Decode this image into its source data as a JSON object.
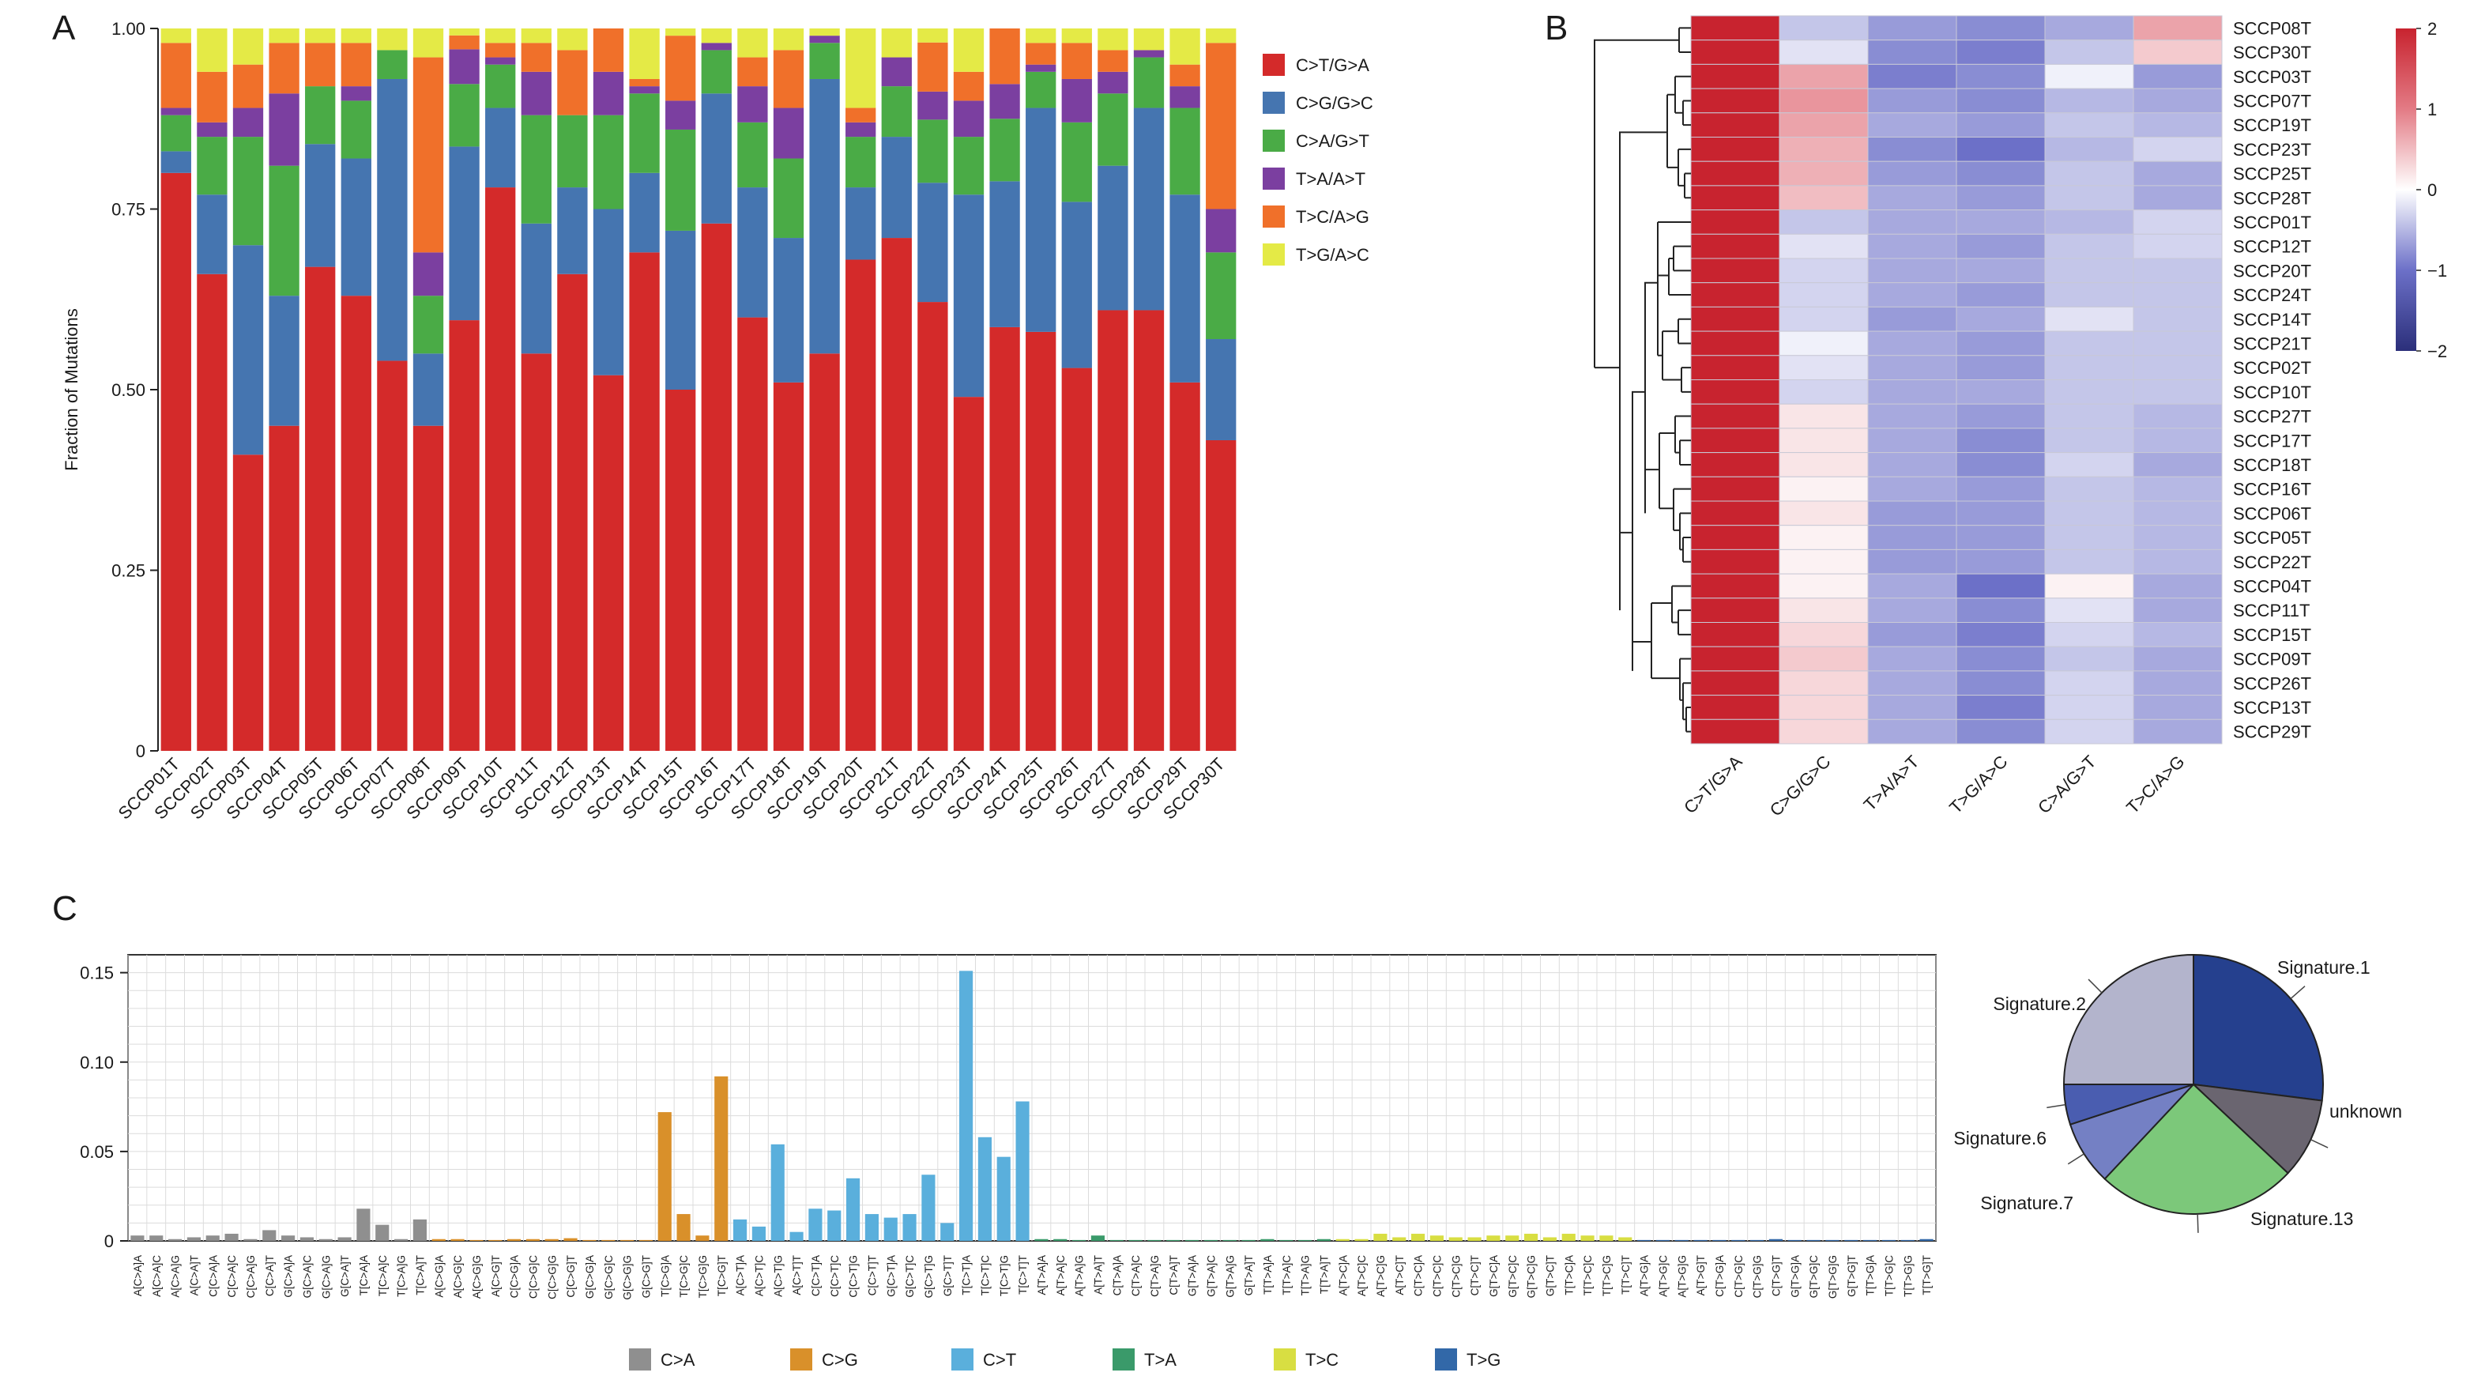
{
  "panel_letters": {
    "a": "A",
    "b": "B",
    "c": "C"
  },
  "chart_data": [
    {
      "panel": "A",
      "type": "bar",
      "stacked": true,
      "ylabel": "Fraction of Mutations",
      "ylim": [
        0,
        1
      ],
      "yticks": [
        "0",
        "0.25",
        "0.50",
        "0.75",
        "1.00"
      ],
      "ytick_values": [
        0,
        0.25,
        0.5,
        0.75,
        1.0
      ],
      "legend_position": "right",
      "categories": [
        "SCCP01T",
        "SCCP02T",
        "SCCP03T",
        "SCCP04T",
        "SCCP05T",
        "SCCP06T",
        "SCCP07T",
        "SCCP08T",
        "SCCP09T",
        "SCCP10T",
        "SCCP11T",
        "SCCP12T",
        "SCCP13T",
        "SCCP14T",
        "SCCP15T",
        "SCCP16T",
        "SCCP17T",
        "SCCP18T",
        "SCCP19T",
        "SCCP20T",
        "SCCP21T",
        "SCCP22T",
        "SCCP23T",
        "SCCP24T",
        "SCCP25T",
        "SCCP26T",
        "SCCP27T",
        "SCCP28T",
        "SCCP29T",
        "SCCP30T"
      ],
      "series": [
        {
          "name": "C>T/G>A",
          "color": "#d42a2a",
          "values": [
            0.8,
            0.66,
            0.41,
            0.45,
            0.67,
            0.63,
            0.54,
            0.45,
            0.62,
            0.78,
            0.55,
            0.66,
            0.52,
            0.69,
            0.5,
            0.73,
            0.6,
            0.51,
            0.55,
            0.68,
            0.71,
            0.64,
            0.49,
            0.61,
            0.58,
            0.53,
            0.61,
            0.61,
            0.51,
            0.43
          ]
        },
        {
          "name": "C>G/G>C",
          "color": "#4575b0",
          "values": [
            0.03,
            0.11,
            0.29,
            0.18,
            0.17,
            0.19,
            0.39,
            0.1,
            0.25,
            0.11,
            0.18,
            0.12,
            0.23,
            0.11,
            0.22,
            0.18,
            0.18,
            0.2,
            0.38,
            0.1,
            0.14,
            0.17,
            0.28,
            0.21,
            0.31,
            0.23,
            0.2,
            0.28,
            0.26,
            0.14
          ]
        },
        {
          "name": "C>A/G>T",
          "color": "#4aab46",
          "values": [
            0.05,
            0.08,
            0.15,
            0.18,
            0.08,
            0.08,
            0.04,
            0.08,
            0.09,
            0.06,
            0.15,
            0.1,
            0.13,
            0.11,
            0.14,
            0.06,
            0.09,
            0.11,
            0.05,
            0.07,
            0.07,
            0.09,
            0.08,
            0.09,
            0.05,
            0.11,
            0.1,
            0.07,
            0.12,
            0.12
          ]
        },
        {
          "name": "T>A/A>T",
          "color": "#7b3fa0",
          "values": [
            0.01,
            0.02,
            0.04,
            0.1,
            0.0,
            0.02,
            0.0,
            0.06,
            0.05,
            0.01,
            0.06,
            0.0,
            0.06,
            0.01,
            0.04,
            0.01,
            0.05,
            0.07,
            0.01,
            0.02,
            0.04,
            0.04,
            0.05,
            0.05,
            0.01,
            0.06,
            0.03,
            0.01,
            0.03,
            0.06
          ]
        },
        {
          "name": "T>C/A>G",
          "color": "#f0702a",
          "values": [
            0.09,
            0.07,
            0.06,
            0.07,
            0.06,
            0.06,
            0.0,
            0.27,
            0.02,
            0.02,
            0.04,
            0.09,
            0.06,
            0.01,
            0.09,
            0.0,
            0.04,
            0.08,
            0.0,
            0.02,
            0.0,
            0.07,
            0.04,
            0.08,
            0.03,
            0.05,
            0.03,
            0.0,
            0.03,
            0.23
          ]
        },
        {
          "name": "T>G/A>C",
          "color": "#e4ea46",
          "values": [
            0.02,
            0.06,
            0.05,
            0.02,
            0.02,
            0.02,
            0.03,
            0.04,
            0.01,
            0.02,
            0.02,
            0.03,
            0.0,
            0.07,
            0.01,
            0.02,
            0.04,
            0.03,
            0.01,
            0.11,
            0.04,
            0.02,
            0.06,
            0.0,
            0.02,
            0.02,
            0.03,
            0.03,
            0.05,
            0.02
          ]
        }
      ]
    },
    {
      "panel": "B",
      "type": "heatmap",
      "columns": [
        "C>T/G>A",
        "C>G/G>C",
        "T>A/A>T",
        "T>G/A>C",
        "C>A/G>T",
        "T>C/A>G"
      ],
      "rows": [
        "SCCP08T",
        "SCCP30T",
        "SCCP03T",
        "SCCP07T",
        "SCCP19T",
        "SCCP23T",
        "SCCP25T",
        "SCCP28T",
        "SCCP01T",
        "SCCP12T",
        "SCCP20T",
        "SCCP24T",
        "SCCP14T",
        "SCCP21T",
        "SCCP02T",
        "SCCP10T",
        "SCCP27T",
        "SCCP17T",
        "SCCP18T",
        "SCCP16T",
        "SCCP06T",
        "SCCP05T",
        "SCCP22T",
        "SCCP04T",
        "SCCP11T",
        "SCCP15T",
        "SCCP09T",
        "SCCP26T",
        "SCCP13T",
        "SCCP29T"
      ],
      "values": [
        [
          2.0,
          -0.4,
          -0.7,
          -0.8,
          -0.6,
          0.7
        ],
        [
          2.0,
          -0.2,
          -0.8,
          -0.9,
          -0.4,
          0.4
        ],
        [
          2.0,
          0.7,
          -0.9,
          -0.8,
          -0.1,
          -0.7
        ],
        [
          2.0,
          0.8,
          -0.7,
          -0.8,
          -0.5,
          -0.6
        ],
        [
          2.0,
          0.7,
          -0.6,
          -0.7,
          -0.4,
          -0.5
        ],
        [
          2.0,
          0.6,
          -0.8,
          -1.0,
          -0.5,
          -0.3
        ],
        [
          2.0,
          0.6,
          -0.7,
          -0.8,
          -0.4,
          -0.6
        ],
        [
          2.0,
          0.5,
          -0.6,
          -0.7,
          -0.4,
          -0.6
        ],
        [
          2.0,
          -0.4,
          -0.6,
          -0.6,
          -0.5,
          -0.3
        ],
        [
          2.0,
          -0.2,
          -0.6,
          -0.7,
          -0.4,
          -0.3
        ],
        [
          2.0,
          -0.3,
          -0.6,
          -0.6,
          -0.4,
          -0.4
        ],
        [
          2.0,
          -0.3,
          -0.6,
          -0.7,
          -0.4,
          -0.4
        ],
        [
          2.0,
          -0.3,
          -0.7,
          -0.6,
          -0.2,
          -0.4
        ],
        [
          2.0,
          -0.1,
          -0.6,
          -0.7,
          -0.4,
          -0.4
        ],
        [
          2.0,
          -0.2,
          -0.6,
          -0.7,
          -0.4,
          -0.4
        ],
        [
          2.0,
          -0.3,
          -0.6,
          -0.6,
          -0.4,
          -0.4
        ],
        [
          2.0,
          0.2,
          -0.6,
          -0.7,
          -0.4,
          -0.5
        ],
        [
          2.0,
          0.2,
          -0.6,
          -0.8,
          -0.4,
          -0.5
        ],
        [
          2.0,
          0.2,
          -0.6,
          -0.8,
          -0.3,
          -0.6
        ],
        [
          2.0,
          0.1,
          -0.6,
          -0.7,
          -0.4,
          -0.5
        ],
        [
          2.0,
          0.2,
          -0.7,
          -0.7,
          -0.4,
          -0.5
        ],
        [
          2.0,
          0.1,
          -0.7,
          -0.7,
          -0.4,
          -0.5
        ],
        [
          2.0,
          0.1,
          -0.7,
          -0.7,
          -0.4,
          -0.5
        ],
        [
          2.0,
          0.1,
          -0.6,
          -1.0,
          0.1,
          -0.6
        ],
        [
          2.0,
          0.2,
          -0.6,
          -0.8,
          -0.2,
          -0.6
        ],
        [
          2.0,
          0.3,
          -0.7,
          -0.9,
          -0.3,
          -0.5
        ],
        [
          2.0,
          0.4,
          -0.6,
          -0.8,
          -0.4,
          -0.6
        ],
        [
          2.0,
          0.3,
          -0.6,
          -0.8,
          -0.3,
          -0.6
        ],
        [
          2.0,
          0.3,
          -0.6,
          -0.9,
          -0.3,
          -0.6
        ],
        [
          2.0,
          0.3,
          -0.6,
          -0.8,
          -0.3,
          -0.6
        ]
      ],
      "colorbar": {
        "ticks": [
          "2",
          "1",
          "0",
          "−1",
          "−2"
        ],
        "tick_values": [
          2,
          1,
          0,
          -1,
          -2
        ],
        "colors": [
          "#2b2f7a",
          "#6c70c8",
          "#ffffff",
          "#e37b85",
          "#c8232f"
        ]
      },
      "dendrogram": "left"
    },
    {
      "panel": "C",
      "type": "bar",
      "ylim": [
        0,
        0.16
      ],
      "yticks": [
        "0",
        "0.05",
        "0.10",
        "0.15"
      ],
      "ytick_values": [
        0,
        0.05,
        0.1,
        0.15
      ],
      "grid": true,
      "legend_position": "bottom",
      "legend": [
        {
          "label": "C>A",
          "color": "#8f8f8f"
        },
        {
          "label": "C>G",
          "color": "#d9902a"
        },
        {
          "label": "C>T",
          "color": "#5aafdc"
        },
        {
          "label": "T>A",
          "color": "#3a9a6a"
        },
        {
          "label": "T>C",
          "color": "#d8de42"
        },
        {
          "label": "T>G",
          "color": "#3268a8"
        }
      ],
      "contexts": [
        "A[C>A]A",
        "A[C>A]C",
        "A[C>A]G",
        "A[C>A]T",
        "C[C>A]A",
        "C[C>A]C",
        "C[C>A]G",
        "C[C>A]T",
        "G[C>A]A",
        "G[C>A]C",
        "G[C>A]G",
        "G[C>A]T",
        "T[C>A]A",
        "T[C>A]C",
        "T[C>A]G",
        "T[C>A]T",
        "A[C>G]A",
        "A[C>G]C",
        "A[C>G]G",
        "A[C>G]T",
        "C[C>G]A",
        "C[C>G]C",
        "C[C>G]G",
        "C[C>G]T",
        "G[C>G]A",
        "G[C>G]C",
        "G[C>G]G",
        "G[C>G]T",
        "T[C>G]A",
        "T[C>G]C",
        "T[C>G]G",
        "T[C>G]T",
        "A[C>T]A",
        "A[C>T]C",
        "A[C>T]G",
        "A[C>T]T",
        "C[C>T]A",
        "C[C>T]C",
        "C[C>T]G",
        "C[C>T]T",
        "G[C>T]A",
        "G[C>T]C",
        "G[C>T]G",
        "G[C>T]T",
        "T[C>T]A",
        "T[C>T]C",
        "T[C>T]G",
        "T[C>T]T",
        "A[T>A]A",
        "A[T>A]C",
        "A[T>A]G",
        "A[T>A]T",
        "C[T>A]A",
        "C[T>A]C",
        "C[T>A]G",
        "C[T>A]T",
        "G[T>A]A",
        "G[T>A]C",
        "G[T>A]G",
        "G[T>A]T",
        "T[T>A]A",
        "T[T>A]C",
        "T[T>A]G",
        "T[T>A]T",
        "A[T>C]A",
        "A[T>C]C",
        "A[T>C]G",
        "A[T>C]T",
        "C[T>C]A",
        "C[T>C]C",
        "C[T>C]G",
        "C[T>C]T",
        "G[T>C]A",
        "G[T>C]C",
        "G[T>C]G",
        "G[T>C]T",
        "T[T>C]A",
        "T[T>C]C",
        "T[T>C]G",
        "T[T>C]T",
        "A[T>G]A",
        "A[T>G]C",
        "A[T>G]G",
        "A[T>G]T",
        "C[T>G]A",
        "C[T>G]C",
        "C[T>G]G",
        "C[T>G]T",
        "G[T>G]A",
        "G[T>G]C",
        "G[T>G]G",
        "G[T>G]T",
        "T[T>G]A",
        "T[T>G]C",
        "T[T>G]G",
        "T[T>G]T"
      ],
      "values": [
        0.003,
        0.003,
        0.001,
        0.002,
        0.003,
        0.004,
        0.001,
        0.006,
        0.003,
        0.002,
        0.001,
        0.002,
        0.018,
        0.009,
        0.001,
        0.012,
        0.001,
        0.001,
        0.0005,
        0.0005,
        0.001,
        0.001,
        0.001,
        0.0015,
        0.0005,
        0.0005,
        0.0005,
        0.0005,
        0.072,
        0.015,
        0.003,
        0.092,
        0.012,
        0.008,
        0.054,
        0.005,
        0.018,
        0.017,
        0.035,
        0.015,
        0.013,
        0.015,
        0.037,
        0.01,
        0.151,
        0.058,
        0.047,
        0.078,
        0.001,
        0.001,
        0.0005,
        0.003,
        0.0005,
        0.0005,
        0.0005,
        0.0005,
        0.0005,
        0.0005,
        0.0005,
        0.0005,
        0.001,
        0.0005,
        0.0005,
        0.001,
        0.001,
        0.001,
        0.004,
        0.002,
        0.004,
        0.003,
        0.002,
        0.002,
        0.003,
        0.003,
        0.004,
        0.002,
        0.004,
        0.003,
        0.003,
        0.002,
        0.0005,
        0.0005,
        0.0005,
        0.0005,
        0.0005,
        0.0005,
        0.0005,
        0.001,
        0.0005,
        0.0005,
        0.0005,
        0.0005,
        0.0005,
        0.0005,
        0.0005,
        0.001
      ]
    },
    {
      "panel": "C-pie",
      "type": "pie",
      "slices": [
        {
          "label": "Signature.1",
          "value": 0.27,
          "color": "#25408e"
        },
        {
          "label": "unknown",
          "value": 0.1,
          "color": "#6a6570"
        },
        {
          "label": "Signature.13",
          "value": 0.25,
          "color": "#7cc87a"
        },
        {
          "label": "Signature.7",
          "value": 0.08,
          "color": "#7480c4"
        },
        {
          "label": "Signature.6",
          "value": 0.05,
          "color": "#4a5db0"
        },
        {
          "label": "Signature.2",
          "value": 0.25,
          "color": "#b3b4cc"
        }
      ]
    }
  ]
}
